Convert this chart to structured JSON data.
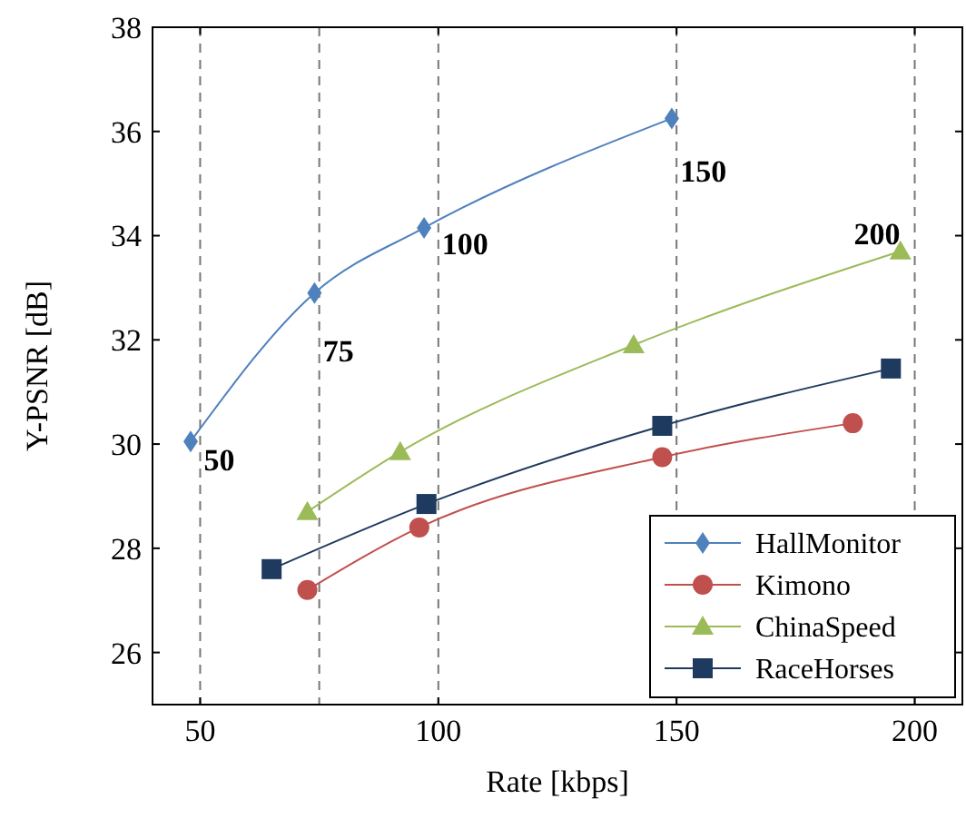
{
  "chart_data": {
    "type": "line",
    "xlabel": "Rate [kbps]",
    "ylabel": "Y-PSNR [dB]",
    "xlim": [
      40,
      210
    ],
    "xticks": [
      50,
      100,
      150,
      200
    ],
    "ylim": [
      25,
      38
    ],
    "yticks": [
      26,
      28,
      30,
      32,
      34,
      36,
      38
    ],
    "grid": false,
    "legend": "bottom right",
    "line_style": "solid",
    "series": [
      {
        "name": "HallMonitor",
        "color": "#4f81bd",
        "marker": "diamond",
        "x": [
          48,
          74,
          97,
          149
        ],
        "values": [
          30.05,
          32.9,
          34.15,
          36.25
        ]
      },
      {
        "name": "Kimono",
        "color": "#c0504d",
        "marker": "circle",
        "x": [
          72.5,
          96,
          147,
          187
        ],
        "values": [
          27.2,
          28.4,
          29.75,
          30.4
        ]
      },
      {
        "name": "ChinaSpeed",
        "color": "#9bbb59",
        "marker": "triangle",
        "x": [
          72.5,
          92,
          141,
          197
        ],
        "values": [
          28.7,
          29.85,
          31.9,
          33.7
        ]
      },
      {
        "name": "RaceHorses",
        "color": "#1f3a5f",
        "marker": "square",
        "x": [
          65,
          97.5,
          147,
          195
        ],
        "values": [
          27.6,
          28.85,
          30.35,
          31.45
        ]
      }
    ],
    "ref_lines": [
      {
        "axis": "x",
        "value": 50,
        "line_style": "dashed"
      },
      {
        "axis": "x",
        "value": 75,
        "line_style": "dashed"
      },
      {
        "axis": "x",
        "value": 100,
        "line_style": "dashed"
      },
      {
        "axis": "x",
        "value": 150,
        "line_style": "dashed"
      },
      {
        "axis": "x",
        "value": 200,
        "line_style": "dashed"
      }
    ],
    "annotations": [
      {
        "text": "50",
        "x": 50,
        "y": 29.7
      },
      {
        "text": "75",
        "x": 75,
        "y": 31.8
      },
      {
        "text": "100",
        "x": 100,
        "y": 33.85
      },
      {
        "text": "150",
        "x": 150,
        "y": 35.25
      },
      {
        "text": "200",
        "x": 200,
        "y": 34.05
      }
    ]
  }
}
